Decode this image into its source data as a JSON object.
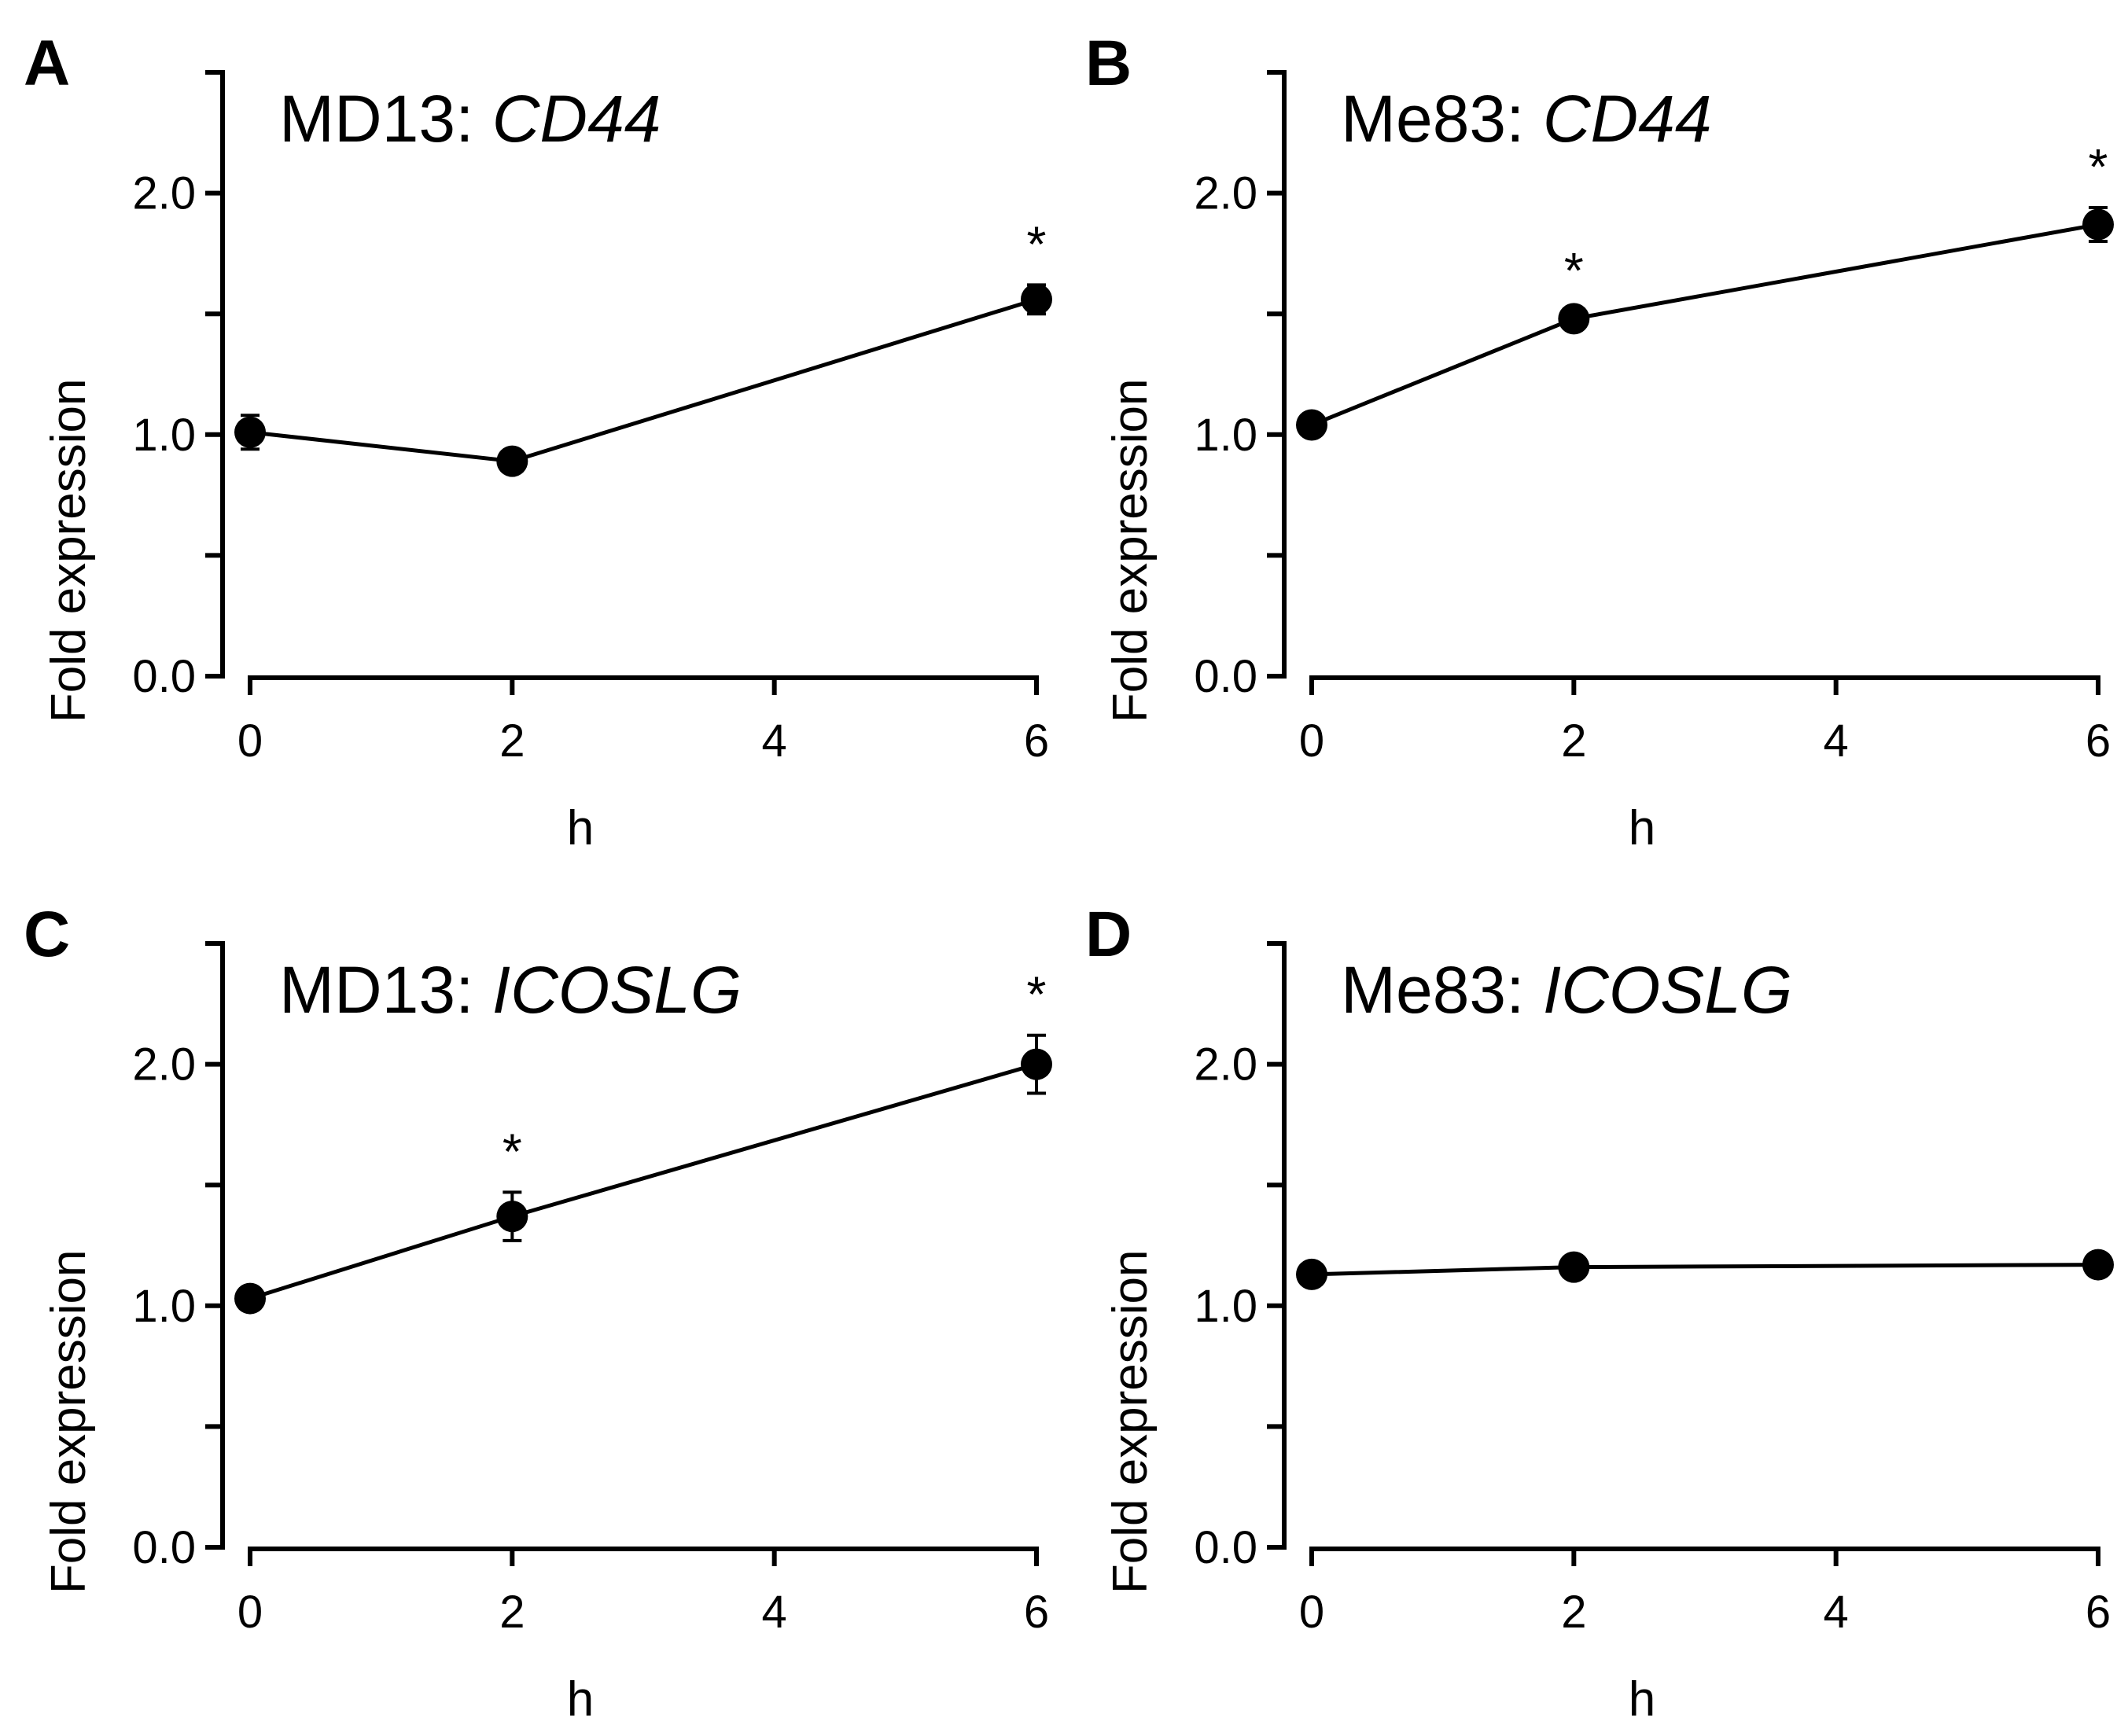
{
  "chart_data": [
    {
      "type": "line",
      "panel_letter": "A",
      "title_prefix": "MD13: ",
      "title_gene": "CD44",
      "x": [
        0,
        2,
        6
      ],
      "values": [
        1.01,
        0.89,
        1.56
      ],
      "errors": [
        0.07,
        0.03,
        0.06
      ],
      "significant": [
        false,
        false,
        true
      ],
      "sig_marker": "*",
      "xlabel": "h",
      "ylabel": "Fold expression",
      "xticks": [
        "0",
        "2",
        "4",
        "6"
      ],
      "yticks": [
        "0.0",
        "1.0",
        "2.0"
      ],
      "xlim": [
        0,
        6
      ],
      "ylim": [
        0,
        2.5
      ]
    },
    {
      "type": "line",
      "panel_letter": "B",
      "title_prefix": "Me83: ",
      "title_gene": "CD44",
      "x": [
        0,
        2,
        6
      ],
      "values": [
        1.04,
        1.48,
        1.87
      ],
      "errors": [
        0.03,
        0.03,
        0.07
      ],
      "significant": [
        false,
        true,
        true
      ],
      "sig_marker": "*",
      "xlabel": "h",
      "ylabel": "Fold expression",
      "xticks": [
        "0",
        "2",
        "4",
        "6"
      ],
      "yticks": [
        "0.0",
        "1.0",
        "2.0"
      ],
      "xlim": [
        0,
        6
      ],
      "ylim": [
        0,
        2.5
      ]
    },
    {
      "type": "line",
      "panel_letter": "C",
      "title_prefix": "MD13: ",
      "title_gene": "ICOSLG",
      "x": [
        0,
        2,
        6
      ],
      "values": [
        1.03,
        1.37,
        2.0
      ],
      "errors": [
        0.03,
        0.1,
        0.12
      ],
      "significant": [
        false,
        true,
        true
      ],
      "sig_marker": "*",
      "xlabel": "h",
      "ylabel": "Fold expression",
      "xticks": [
        "0",
        "2",
        "4",
        "6"
      ],
      "yticks": [
        "0.0",
        "1.0",
        "2.0"
      ],
      "xlim": [
        0,
        6
      ],
      "ylim": [
        0,
        2.5
      ]
    },
    {
      "type": "line",
      "panel_letter": "D",
      "title_prefix": "Me83: ",
      "title_gene": "ICOSLG",
      "x": [
        0,
        2,
        6
      ],
      "values": [
        1.13,
        1.16,
        1.17
      ],
      "errors": [
        0.03,
        0.03,
        0.03
      ],
      "significant": [
        false,
        false,
        false
      ],
      "sig_marker": "*",
      "xlabel": "h",
      "ylabel": "Fold expression",
      "xticks": [
        "0",
        "2",
        "4",
        "6"
      ],
      "yticks": [
        "0.0",
        "1.0",
        "2.0"
      ],
      "xlim": [
        0,
        6
      ],
      "ylim": [
        0,
        2.5
      ]
    }
  ]
}
